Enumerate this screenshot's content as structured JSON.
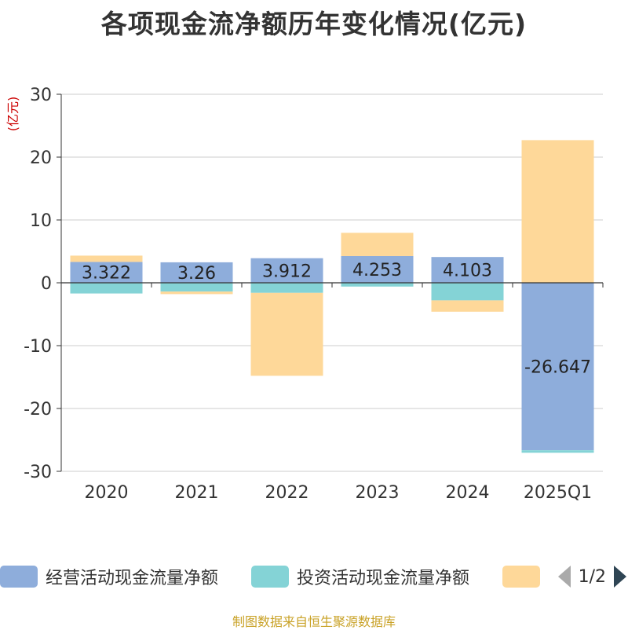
{
  "chart_data": {
    "type": "bar",
    "stacked": true,
    "title": "各项现金流净额历年变化情况(亿元)",
    "ylabel": "(亿元)",
    "xlabel": "",
    "ylim": [
      -30,
      30
    ],
    "yticks": [
      30,
      20,
      10,
      0,
      -10,
      -20,
      -30
    ],
    "categories": [
      "2020",
      "2021",
      "2022",
      "2023",
      "2024",
      "2025Q1"
    ],
    "grid": true,
    "legend_position": "bottom",
    "series": [
      {
        "name": "经营活动现金流量净额",
        "color": "#8eaddb",
        "values": [
          3.322,
          3.26,
          3.912,
          4.253,
          4.103,
          -26.647
        ],
        "labels": [
          "3.322",
          "3.26",
          "3.912",
          "4.253",
          "4.103",
          "-26.647"
        ]
      },
      {
        "name": "投资活动现金流量净额",
        "color": "#84d3d6",
        "values": [
          -1.7,
          -1.4,
          -1.6,
          -0.6,
          -2.8,
          -0.4
        ]
      },
      {
        "name": "",
        "color": "#fed899",
        "values": [
          1.0,
          -0.4,
          -13.2,
          3.7,
          -1.8,
          22.7
        ]
      }
    ]
  },
  "legend": {
    "page_text": "1/2"
  },
  "source": "制图数据来自恒生聚源数据库"
}
